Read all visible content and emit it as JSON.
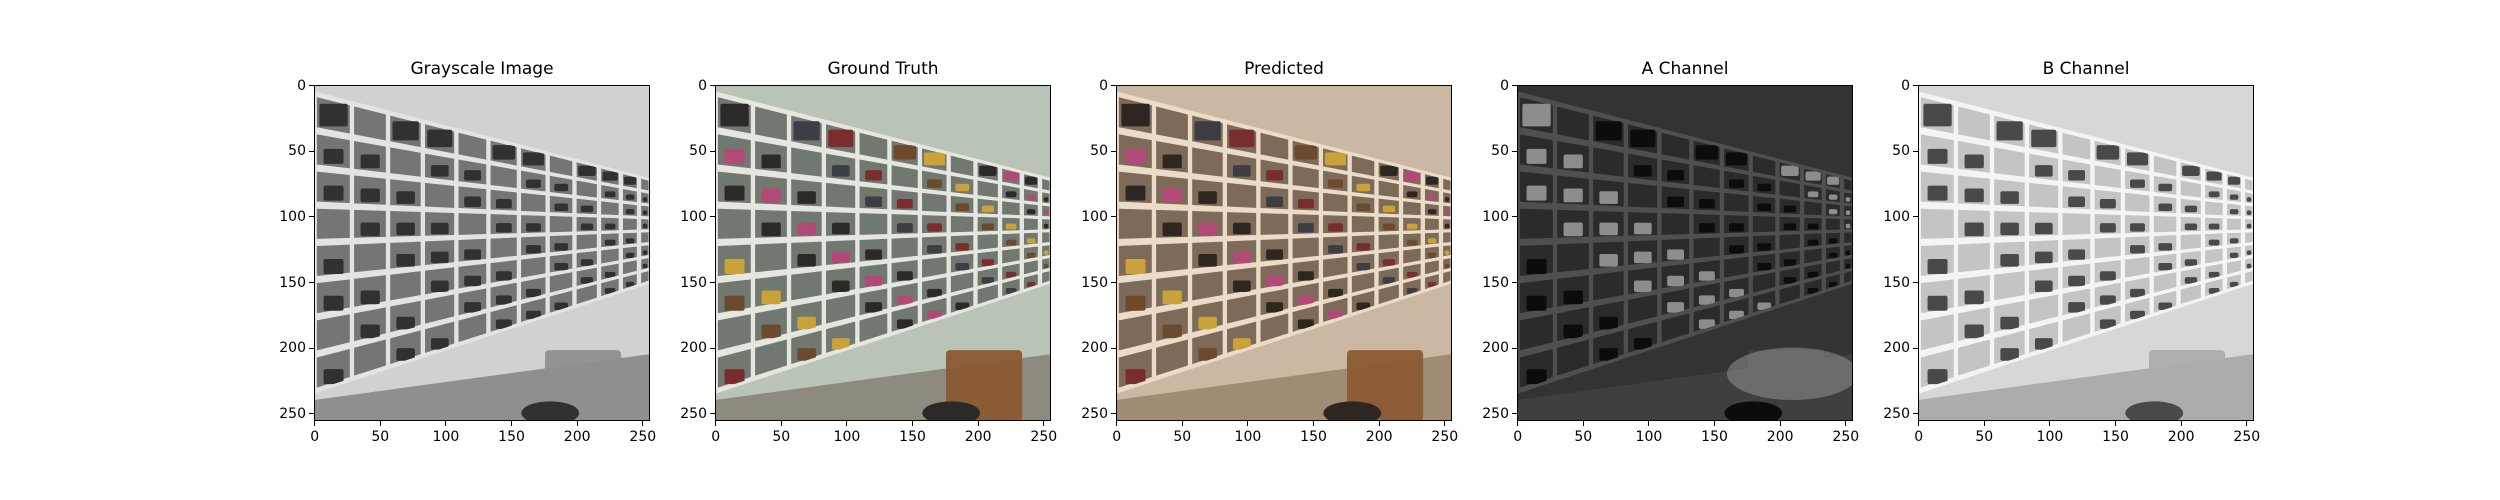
{
  "figure": {
    "panels": [
      {
        "id": "grayscale",
        "title": "Grayscale Image",
        "style": "gray",
        "colors": {
          "bg": "#bdbdbd",
          "shelf": "#e2e2e2",
          "back": "#6e6e6e",
          "item": "#262626",
          "floor": "#8a8a8a",
          "wall": "#cfcfcf"
        }
      },
      {
        "id": "ground-truth",
        "title": "Ground Truth",
        "style": "color",
        "colors": {
          "bg": "#c6cbbd",
          "shelf": "#e4e6df",
          "back": "#70786f",
          "item": "#2c2a28",
          "floor": "#8f8a7f",
          "wall": "#b9c4b6"
        }
      },
      {
        "id": "predicted",
        "title": "Predicted",
        "style": "color",
        "colors": {
          "bg": "#d2c3ae",
          "shelf": "#eadcc8",
          "back": "#7d6a58",
          "item": "#2e2621",
          "floor": "#a08b73",
          "wall": "#cbb8a3"
        }
      },
      {
        "id": "a-channel",
        "title": "A Channel",
        "style": "channel-a",
        "colors": {
          "bg": "#2b2b2b",
          "shelf": "#6a6a6a",
          "back": "#3a3a3a",
          "item": "#101010",
          "floor": "#555555",
          "wall": "#444444"
        }
      },
      {
        "id": "b-channel",
        "title": "B Channel",
        "style": "channel-b",
        "colors": {
          "bg": "#d9d9d9",
          "shelf": "#f2f2f2",
          "back": "#b8b8b8",
          "item": "#222222",
          "floor": "#9a9a9a",
          "wall": "#cfcfcf"
        }
      }
    ]
  },
  "chart_data": [
    {
      "type": "image",
      "title": "Grayscale Image",
      "xlim": [
        0,
        255
      ],
      "ylim": [
        255,
        0
      ],
      "xticks": [
        "0",
        "50",
        "100",
        "150",
        "200",
        "250"
      ],
      "yticks": [
        "0",
        "50",
        "100",
        "150",
        "200",
        "250"
      ]
    },
    {
      "type": "image",
      "title": "Ground Truth",
      "xlim": [
        0,
        255
      ],
      "ylim": [
        255,
        0
      ],
      "xticks": [
        "0",
        "50",
        "100",
        "150",
        "200",
        "250"
      ],
      "yticks": [
        "0",
        "50",
        "100",
        "150",
        "200",
        "250"
      ]
    },
    {
      "type": "image",
      "title": "Predicted",
      "xlim": [
        0,
        255
      ],
      "ylim": [
        255,
        0
      ],
      "xticks": [
        "0",
        "50",
        "100",
        "150",
        "200",
        "250"
      ],
      "yticks": [
        "0",
        "50",
        "100",
        "150",
        "200",
        "250"
      ]
    },
    {
      "type": "image",
      "title": "A Channel",
      "xlim": [
        0,
        255
      ],
      "ylim": [
        255,
        0
      ],
      "xticks": [
        "0",
        "50",
        "100",
        "150",
        "200",
        "250"
      ],
      "yticks": [
        "0",
        "50",
        "100",
        "150",
        "200",
        "250"
      ]
    },
    {
      "type": "image",
      "title": "B Channel",
      "xlim": [
        0,
        255
      ],
      "ylim": [
        255,
        0
      ],
      "xticks": [
        "0",
        "50",
        "100",
        "150",
        "200",
        "250"
      ],
      "yticks": [
        "0",
        "50",
        "100",
        "150",
        "200",
        "250"
      ]
    }
  ]
}
